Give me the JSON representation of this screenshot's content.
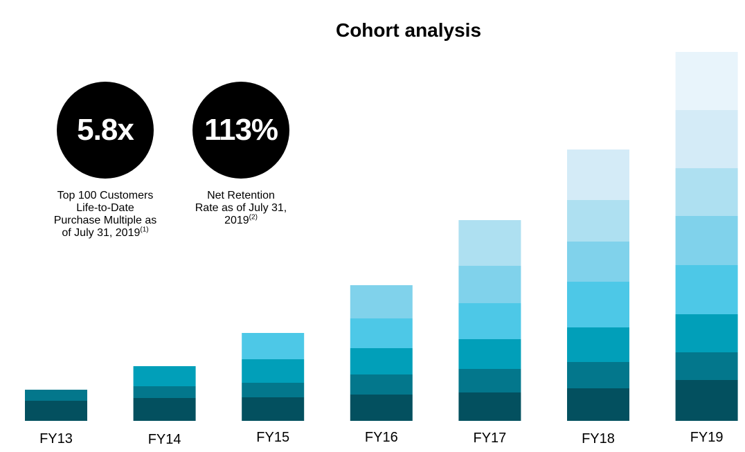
{
  "title": "Cohort analysis",
  "kpis": [
    {
      "value": "5.8x",
      "caption_lines": [
        "Top 100 Customers",
        "Life-to-Date",
        "Purchase Multiple as"
      ],
      "caption_last": "of July 31, 2019",
      "footnote": "(1)"
    },
    {
      "value": "113%",
      "caption_lines": [
        "Net Retention",
        "Rate as of July 31,"
      ],
      "caption_last": "2019",
      "footnote": "(2)"
    }
  ],
  "colors": {
    "cohort_shades": [
      "#03505f",
      "#03778c",
      "#019fb9",
      "#4dc8e7",
      "#80d2eb",
      "#aee0f1",
      "#d4ebf7",
      "#e8f4fb"
    ]
  },
  "chart_data": {
    "type": "bar",
    "stacked": true,
    "categories": [
      "FY13",
      "FY14",
      "FY15",
      "FY16",
      "FY17",
      "FY18",
      "FY19"
    ],
    "series": [
      {
        "values": [
          29,
          33,
          34,
          38,
          41,
          47,
          59
        ]
      },
      {
        "values": [
          16,
          17,
          21,
          29,
          34,
          38,
          40
        ]
      },
      {
        "values": [
          0,
          29,
          34,
          38,
          43,
          50,
          55
        ]
      },
      {
        "values": [
          0,
          0,
          38,
          43,
          52,
          66,
          71
        ]
      },
      {
        "values": [
          0,
          0,
          0,
          48,
          54,
          58,
          71
        ]
      },
      {
        "values": [
          0,
          0,
          0,
          0,
          66,
          60,
          69
        ]
      },
      {
        "values": [
          0,
          0,
          0,
          0,
          0,
          73,
          84
        ]
      },
      {
        "values": [
          0,
          0,
          0,
          0,
          0,
          0,
          84
        ]
      }
    ],
    "ylim": [
      0,
      540
    ],
    "grid": false,
    "legend": "none"
  }
}
